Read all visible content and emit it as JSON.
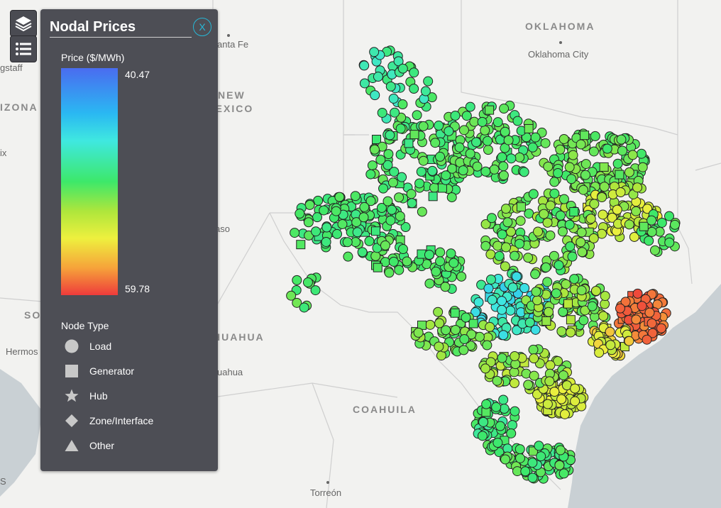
{
  "map": {
    "labels": {
      "oklahoma": "OKLAHOMA",
      "oklahoma_city": "Oklahoma City",
      "santa_fe": "anta Fe",
      "flagstaff": "gstaff",
      "arizona": "IZONA",
      "new_mexico_1": "NEW",
      "new_mexico_2": "MEXICO",
      "phoenix": "ix",
      "el_paso": "aso",
      "sonora": "SO",
      "hermosillo": "Hermos",
      "chihuahua": "HUAHUA",
      "chihuahua_city": "uahua",
      "coahuila": "COAHUILA",
      "torreon": "Torreón",
      "edge_s": "S"
    },
    "colors": {
      "land": "#f2f2f0",
      "water": "#c9d0d4",
      "border": "#cfcfcf",
      "node_stroke": "#222222"
    }
  },
  "toolbar": {
    "layers_icon": "layers-icon",
    "list_icon": "list-icon"
  },
  "legend": {
    "title": "Nodal Prices",
    "close_label": "X",
    "price_title": "Price ($/MWh)",
    "price_max": "40.47",
    "price_min": "59.78",
    "node_type_title": "Node Type",
    "node_types": [
      {
        "label": "Load",
        "icon": "circle-icon"
      },
      {
        "label": "Generator",
        "icon": "square-icon"
      },
      {
        "label": "Hub",
        "icon": "star-icon"
      },
      {
        "label": "Zone/Interface",
        "icon": "diamond-icon"
      },
      {
        "label": "Other",
        "icon": "triangle-icon"
      }
    ],
    "colors": {
      "panel": "#4d4e55",
      "accent": "#27b7d6",
      "gradient_low": "#4a6cf0",
      "gradient_high": "#ee3b3b"
    }
  }
}
